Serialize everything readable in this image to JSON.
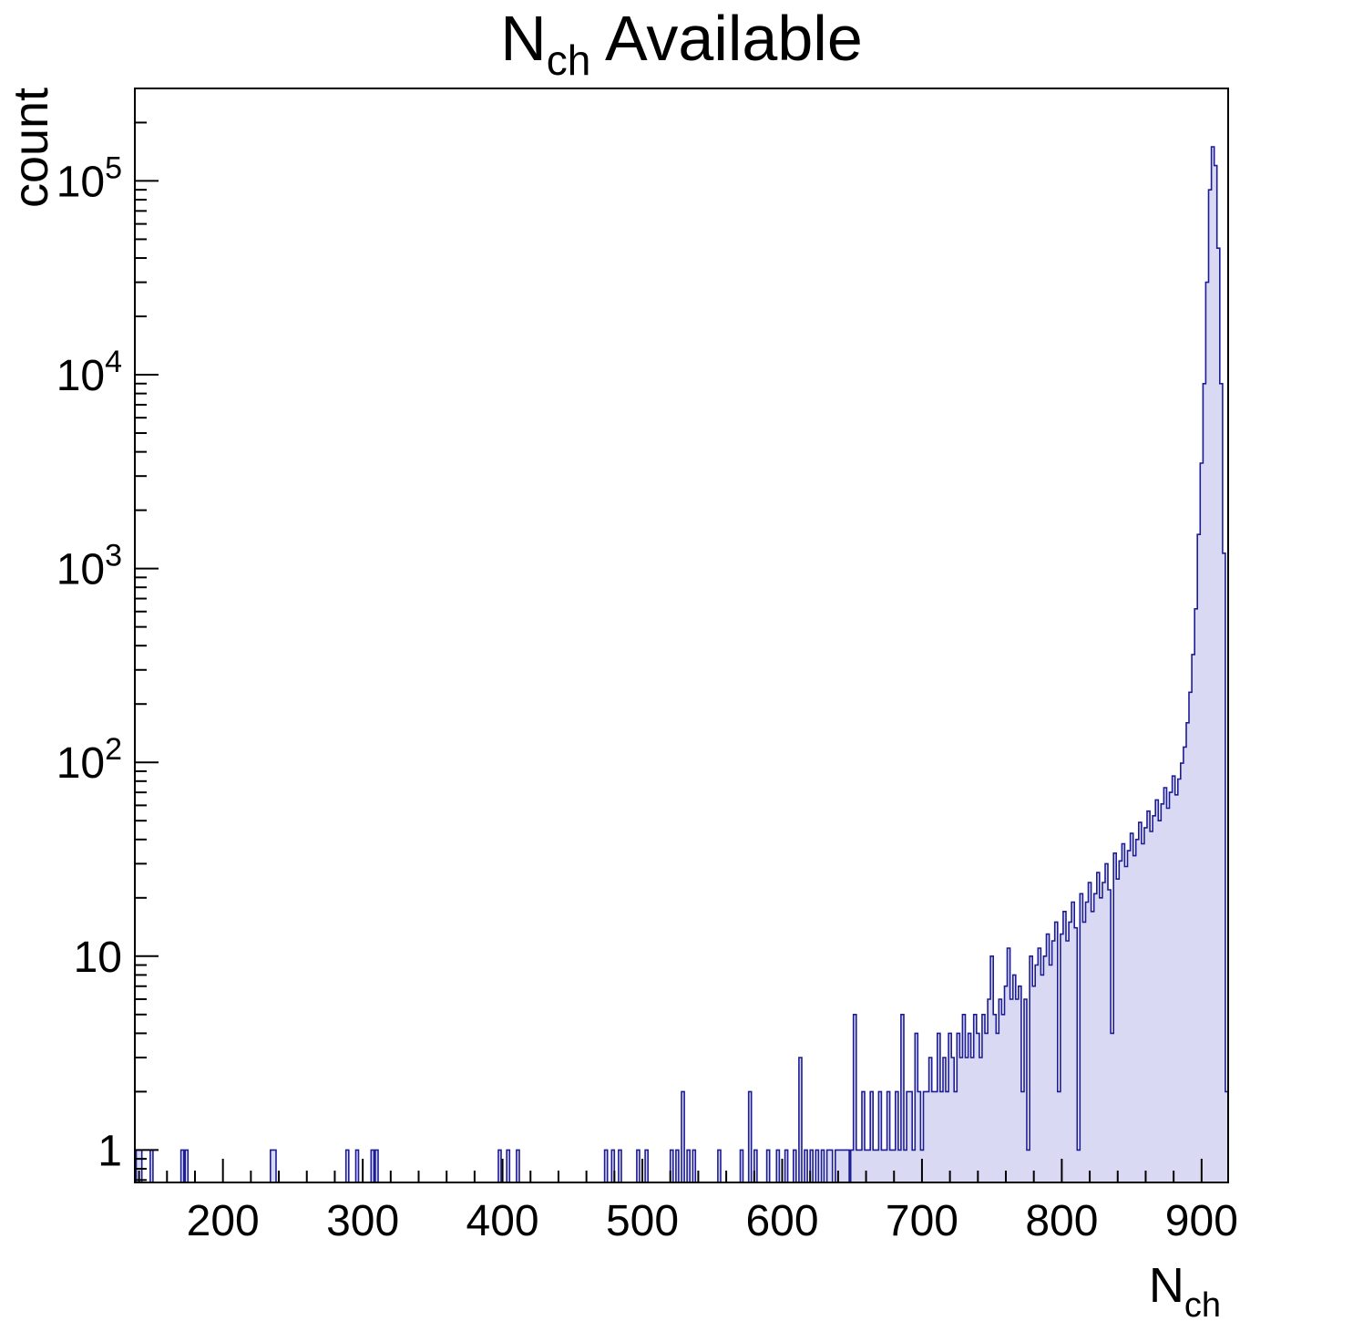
{
  "page": {
    "background": "#ffffff"
  },
  "chart_data": {
    "type": "bar",
    "subtype": "histogram",
    "title_parts": [
      {
        "t": "N"
      },
      {
        "t": "ch",
        "sub": true
      },
      {
        "t": " Available"
      }
    ],
    "ylabel": "count",
    "xlabel_parts": [
      {
        "t": "N"
      },
      {
        "t": "ch",
        "sub": true
      }
    ],
    "xlim": [
      137,
      919
    ],
    "ylim": [
      0.68,
      300000
    ],
    "yscale": "log",
    "grid": false,
    "legend": "none",
    "x_major_ticks": [
      200,
      300,
      400,
      500,
      600,
      700,
      800,
      900
    ],
    "x_minor_step": 20,
    "y_major_ticks": [
      1,
      10,
      100,
      1000,
      10000,
      100000
    ],
    "bin_width": 2,
    "colors": {
      "fill": "#d9d9f3",
      "line": "#1c1c96",
      "axis": "#000000",
      "text": "#000000"
    },
    "bins": [
      [
        139,
        1
      ],
      [
        141,
        1
      ],
      [
        149,
        1
      ],
      [
        171,
        1
      ],
      [
        174,
        1
      ],
      [
        235,
        1
      ],
      [
        237,
        1
      ],
      [
        289,
        1
      ],
      [
        296,
        1
      ],
      [
        307,
        1
      ],
      [
        310,
        1
      ],
      [
        398,
        1
      ],
      [
        404,
        1
      ],
      [
        411,
        1
      ],
      [
        474,
        1
      ],
      [
        479,
        1
      ],
      [
        484,
        1
      ],
      [
        497,
        1
      ],
      [
        503,
        1
      ],
      [
        521,
        1
      ],
      [
        525,
        1
      ],
      [
        529,
        2
      ],
      [
        533,
        1
      ],
      [
        537,
        1
      ],
      [
        555,
        1
      ],
      [
        571,
        1
      ],
      [
        577,
        2
      ],
      [
        581,
        1
      ],
      [
        590,
        1
      ],
      [
        597,
        1
      ],
      [
        603,
        1
      ],
      [
        609,
        1
      ],
      [
        613,
        3
      ],
      [
        617,
        1
      ],
      [
        621,
        1
      ],
      [
        625,
        1
      ],
      [
        629,
        1
      ],
      [
        633,
        1
      ],
      [
        635,
        1
      ],
      [
        639,
        1
      ],
      [
        641,
        1
      ],
      [
        643,
        1
      ],
      [
        645,
        1
      ],
      [
        647,
        1
      ],
      [
        650,
        1
      ],
      [
        652,
        5
      ],
      [
        654,
        1
      ],
      [
        656,
        1
      ],
      [
        658,
        2
      ],
      [
        660,
        1
      ],
      [
        662,
        1
      ],
      [
        664,
        2
      ],
      [
        666,
        1
      ],
      [
        668,
        1
      ],
      [
        670,
        2
      ],
      [
        672,
        1
      ],
      [
        674,
        1
      ],
      [
        676,
        2
      ],
      [
        678,
        1
      ],
      [
        680,
        1
      ],
      [
        682,
        2
      ],
      [
        684,
        1
      ],
      [
        686,
        5
      ],
      [
        688,
        1
      ],
      [
        690,
        2
      ],
      [
        692,
        2
      ],
      [
        694,
        1
      ],
      [
        696,
        4
      ],
      [
        698,
        2
      ],
      [
        700,
        1
      ],
      [
        702,
        2
      ],
      [
        704,
        2
      ],
      [
        706,
        3
      ],
      [
        708,
        2
      ],
      [
        710,
        2
      ],
      [
        712,
        4
      ],
      [
        714,
        2
      ],
      [
        716,
        3
      ],
      [
        718,
        2
      ],
      [
        720,
        4
      ],
      [
        722,
        3
      ],
      [
        724,
        2
      ],
      [
        726,
        4
      ],
      [
        728,
        3
      ],
      [
        730,
        5
      ],
      [
        732,
        3
      ],
      [
        734,
        4
      ],
      [
        736,
        3
      ],
      [
        738,
        5
      ],
      [
        740,
        4
      ],
      [
        742,
        3
      ],
      [
        744,
        5
      ],
      [
        746,
        4
      ],
      [
        748,
        6
      ],
      [
        750,
        10
      ],
      [
        752,
        5
      ],
      [
        754,
        4
      ],
      [
        756,
        6
      ],
      [
        758,
        5
      ],
      [
        760,
        7
      ],
      [
        762,
        11
      ],
      [
        764,
        6
      ],
      [
        766,
        8
      ],
      [
        768,
        6
      ],
      [
        770,
        7
      ],
      [
        772,
        2
      ],
      [
        774,
        6
      ],
      [
        776,
        1
      ],
      [
        778,
        10
      ],
      [
        780,
        7
      ],
      [
        782,
        9
      ],
      [
        784,
        11
      ],
      [
        786,
        8
      ],
      [
        788,
        10
      ],
      [
        790,
        13
      ],
      [
        792,
        9
      ],
      [
        794,
        12
      ],
      [
        796,
        15
      ],
      [
        798,
        2
      ],
      [
        800,
        13
      ],
      [
        802,
        17
      ],
      [
        804,
        12
      ],
      [
        806,
        15
      ],
      [
        808,
        19
      ],
      [
        810,
        14
      ],
      [
        812,
        1
      ],
      [
        814,
        21
      ],
      [
        816,
        15
      ],
      [
        818,
        19
      ],
      [
        820,
        24
      ],
      [
        822,
        17
      ],
      [
        824,
        21
      ],
      [
        826,
        27
      ],
      [
        828,
        20
      ],
      [
        830,
        24
      ],
      [
        832,
        30
      ],
      [
        834,
        22
      ],
      [
        836,
        4
      ],
      [
        838,
        34
      ],
      [
        840,
        25
      ],
      [
        842,
        31
      ],
      [
        844,
        38
      ],
      [
        846,
        29
      ],
      [
        848,
        35
      ],
      [
        850,
        43
      ],
      [
        852,
        33
      ],
      [
        854,
        40
      ],
      [
        856,
        49
      ],
      [
        858,
        38
      ],
      [
        860,
        46
      ],
      [
        862,
        56
      ],
      [
        864,
        44
      ],
      [
        866,
        53
      ],
      [
        868,
        64
      ],
      [
        870,
        50
      ],
      [
        872,
        61
      ],
      [
        874,
        74
      ],
      [
        876,
        58
      ],
      [
        878,
        70
      ],
      [
        880,
        85
      ],
      [
        882,
        68
      ],
      [
        884,
        82
      ],
      [
        886,
        99
      ],
      [
        888,
        120
      ],
      [
        890,
        160
      ],
      [
        892,
        230
      ],
      [
        894,
        360
      ],
      [
        896,
        620
      ],
      [
        898,
        1500
      ],
      [
        900,
        3500
      ],
      [
        902,
        9000
      ],
      [
        904,
        30000
      ],
      [
        906,
        90000
      ],
      [
        908,
        150000
      ],
      [
        910,
        120000
      ],
      [
        912,
        45000
      ],
      [
        914,
        9000
      ],
      [
        916,
        1200
      ],
      [
        918,
        2
      ]
    ]
  }
}
